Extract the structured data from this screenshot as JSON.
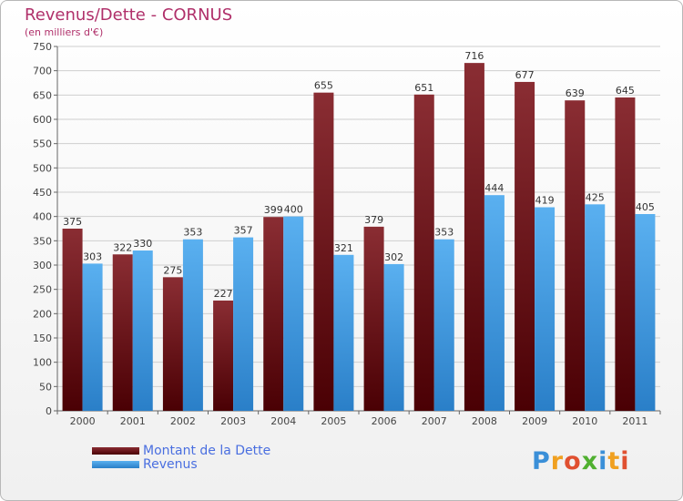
{
  "title": "Revenus/Dette - CORNUS",
  "subtitle": "(en milliers d'€)",
  "colors": {
    "dette": "#7a1c22",
    "dette_dark": "#4a0004",
    "revenus": "#4aa3e8",
    "revenus_dark": "#2a7fc8",
    "title": "#b0306a",
    "legend_text": "#4a6fe0"
  },
  "chart_data": {
    "type": "bar",
    "title": "Revenus/Dette - CORNUS",
    "ylabel": "(en milliers d'€)",
    "xlabel": "",
    "categories": [
      "2000",
      "2001",
      "2002",
      "2003",
      "2004",
      "2005",
      "2006",
      "2007",
      "2008",
      "2009",
      "2010",
      "2011"
    ],
    "series": [
      {
        "name": "Montant de la Dette",
        "values": [
          375,
          322,
          275,
          227,
          399,
          655,
          379,
          651,
          716,
          677,
          639,
          645
        ]
      },
      {
        "name": "Revenus",
        "values": [
          303,
          330,
          353,
          357,
          400,
          321,
          302,
          353,
          444,
          419,
          425,
          405
        ]
      }
    ],
    "ylim": [
      0,
      750
    ],
    "yticks": [
      0,
      50,
      100,
      150,
      200,
      250,
      300,
      350,
      400,
      450,
      500,
      550,
      600,
      650,
      700,
      750
    ],
    "grid": true,
    "legend": "bottom-left"
  },
  "legend": [
    {
      "label": "Montant de la Dette"
    },
    {
      "label": "Revenus"
    }
  ],
  "logo": {
    "letters": [
      "P",
      "r",
      "o",
      "x",
      "i",
      "t",
      "i"
    ]
  }
}
